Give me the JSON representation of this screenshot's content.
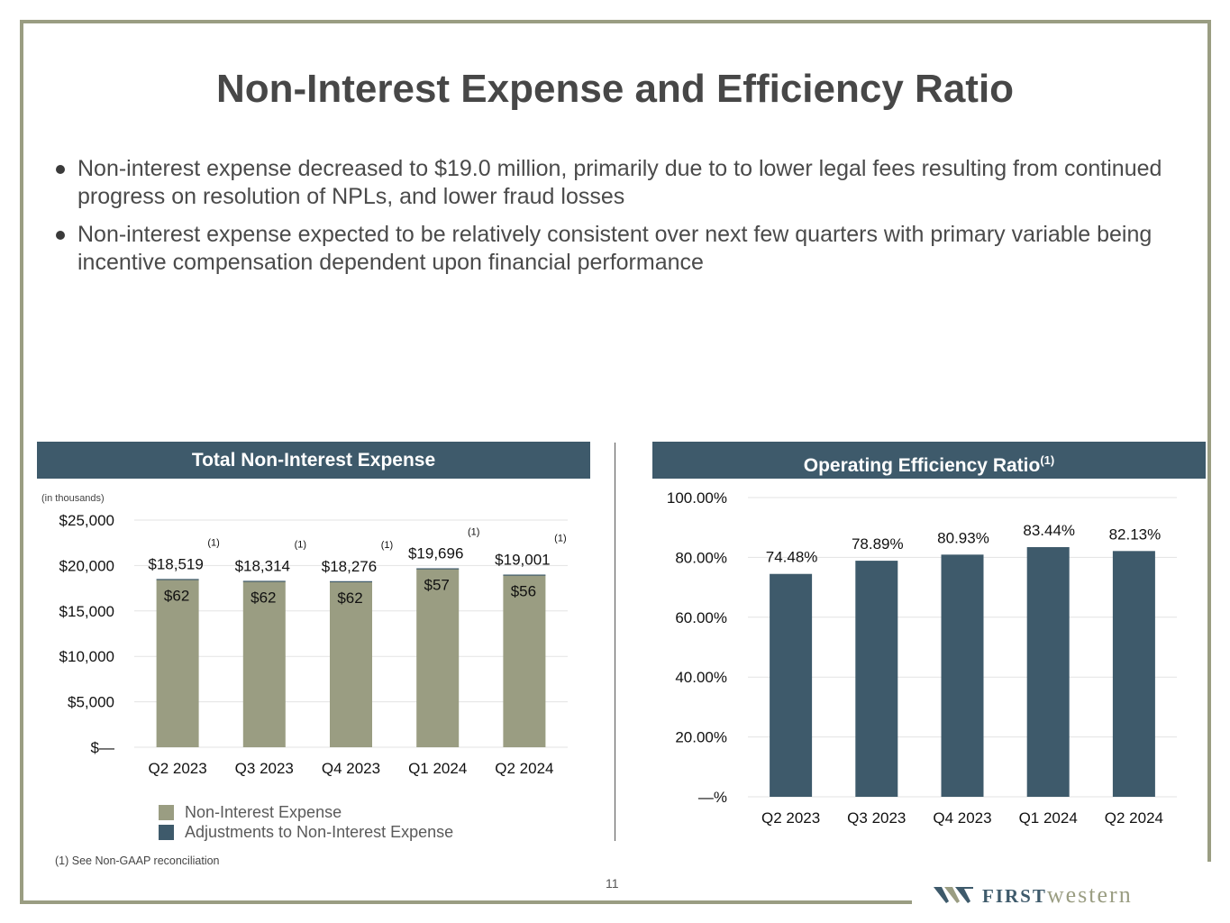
{
  "title": "Non-Interest Expense and Efficiency Ratio",
  "bullets": [
    "Non-interest expense decreased to $19.0 million, primarily due to to lower legal fees resulting from continued progress on resolution of NPLs, and lower fraud losses",
    "Non-interest expense expected to be relatively consistent over next few quarters with primary variable being incentive compensation dependent upon financial performance"
  ],
  "left_panel": {
    "title": "Total Non-Interest Expense",
    "units_note": "(in thousands)"
  },
  "right_panel": {
    "title": "Operating Efficiency Ratio",
    "title_sup": "(1)"
  },
  "colors": {
    "olive": "#9a9d82",
    "navy": "#3e5a6b",
    "grid": "#e3e3e3"
  },
  "chart_data": [
    {
      "type": "bar",
      "stacked": true,
      "title": "Total Non-Interest Expense",
      "ylabel": "(in thousands)",
      "categories": [
        "Q2 2023",
        "Q3 2023",
        "Q4 2023",
        "Q1 2024",
        "Q2 2024"
      ],
      "series": [
        {
          "name": "Non-Interest Expense",
          "color": "#9a9d82",
          "values": [
            18457,
            18252,
            18214,
            19639,
            18945
          ]
        },
        {
          "name": "Adjustments to Non-Interest Expense",
          "color": "#3e5a6b",
          "values": [
            62,
            62,
            62,
            57,
            56
          ]
        }
      ],
      "total_labels": [
        "$18,519",
        "$18,314",
        "$18,276",
        "$19,696",
        "$19,001"
      ],
      "total_label_notes": [
        "(1)",
        "(1)",
        "(1)",
        "(1)",
        "(1)"
      ],
      "adjustment_labels": [
        "$62",
        "$62",
        "$62",
        "$57",
        "$56"
      ],
      "yticks": [
        0,
        5000,
        10000,
        15000,
        20000,
        25000
      ],
      "ytick_labels": [
        "$—",
        "$5,000",
        "$10,000",
        "$15,000",
        "$20,000",
        "$25,000"
      ],
      "ylim": [
        0,
        25000
      ],
      "grid": true,
      "legend": [
        "Non-Interest Expense",
        "Adjustments to Non-Interest Expense"
      ],
      "legend_position": "bottom"
    },
    {
      "type": "bar",
      "title": "Operating Efficiency Ratio",
      "categories": [
        "Q2 2023",
        "Q3 2023",
        "Q4 2023",
        "Q1 2024",
        "Q2 2024"
      ],
      "values": [
        74.48,
        78.89,
        80.93,
        83.44,
        82.13
      ],
      "value_labels": [
        "74.48%",
        "78.89%",
        "80.93%",
        "83.44%",
        "82.13%"
      ],
      "yticks": [
        0,
        20,
        40,
        60,
        80,
        100
      ],
      "ytick_labels": [
        "—%",
        "20.00%",
        "40.00%",
        "60.00%",
        "80.00%",
        "100.00%"
      ],
      "ylim": [
        0,
        100
      ],
      "grid": true,
      "color": "#3e5a6b"
    }
  ],
  "footnote": "(1)  See Non-GAAP reconciliation",
  "page_number": "11",
  "logo": {
    "first": "FIRST",
    "western": "western"
  }
}
